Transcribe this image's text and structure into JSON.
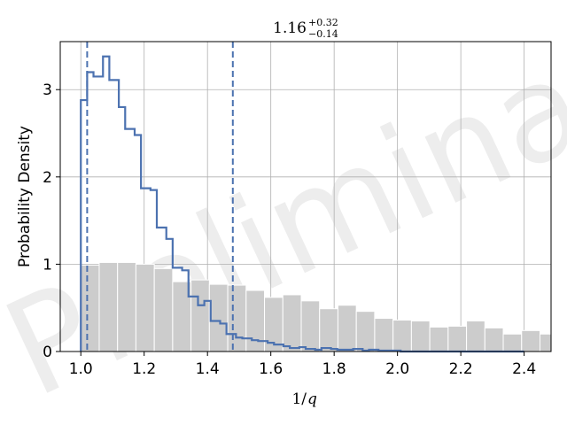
{
  "watermark": "Preliminary",
  "chart_data": {
    "type": "histogram",
    "title_main": "1.16",
    "title_sup": "+0.32",
    "title_sub": "−0.14",
    "xlabel_main": "1/",
    "xlabel_var": "q",
    "ylabel": "Probability Density",
    "xlim": [
      0.935,
      2.485
    ],
    "ylim": [
      0,
      3.55
    ],
    "xticks": [
      1.0,
      1.2,
      1.4,
      1.6,
      1.8,
      2.0,
      2.2,
      2.4
    ],
    "xtick_labels": [
      "1.0",
      "1.2",
      "1.4",
      "1.6",
      "1.8",
      "2.0",
      "2.2",
      "2.4"
    ],
    "yticks": [
      0,
      1,
      2,
      3
    ],
    "ytick_labels": [
      "0",
      "1",
      "2",
      "3"
    ],
    "grid": true,
    "prior": {
      "color": "#cccccc",
      "bin_edges": [
        1.0,
        1.058,
        1.116,
        1.174,
        1.232,
        1.29,
        1.348,
        1.406,
        1.464,
        1.522,
        1.58,
        1.638,
        1.696,
        1.754,
        1.812,
        1.87,
        1.928,
        1.986,
        2.044,
        2.102,
        2.16,
        2.218,
        2.276,
        2.334,
        2.392,
        2.45,
        2.508
      ],
      "values": [
        0.99,
        1.02,
        1.02,
        1.0,
        0.95,
        0.8,
        0.82,
        0.77,
        0.76,
        0.7,
        0.62,
        0.65,
        0.58,
        0.49,
        0.53,
        0.46,
        0.38,
        0.36,
        0.35,
        0.28,
        0.29,
        0.35,
        0.27,
        0.2,
        0.24,
        0.2
      ]
    },
    "posterior": {
      "color": "#4c72b0",
      "bin_edges": [
        1.0,
        1.02,
        1.04,
        1.07,
        1.09,
        1.12,
        1.14,
        1.17,
        1.19,
        1.22,
        1.24,
        1.27,
        1.29,
        1.32,
        1.34,
        1.37,
        1.39,
        1.41,
        1.44,
        1.46,
        1.49,
        1.51,
        1.54,
        1.56,
        1.59,
        1.61,
        1.64,
        1.66,
        1.69,
        1.71,
        1.74,
        1.76,
        1.79,
        1.81,
        1.84,
        1.86,
        1.89,
        1.91,
        1.94,
        1.96,
        1.99,
        2.01,
        2.4
      ],
      "values": [
        2.88,
        3.2,
        3.15,
        3.38,
        3.11,
        2.8,
        2.55,
        2.48,
        1.87,
        1.85,
        1.42,
        1.29,
        0.96,
        0.93,
        0.63,
        0.53,
        0.58,
        0.35,
        0.32,
        0.2,
        0.16,
        0.15,
        0.13,
        0.12,
        0.1,
        0.08,
        0.06,
        0.04,
        0.05,
        0.03,
        0.02,
        0.04,
        0.03,
        0.02,
        0.02,
        0.03,
        0.01,
        0.02,
        0.01,
        0.01,
        0.01,
        0.0
      ]
    },
    "quantile_lines": [
      1.02,
      1.48
    ]
  }
}
